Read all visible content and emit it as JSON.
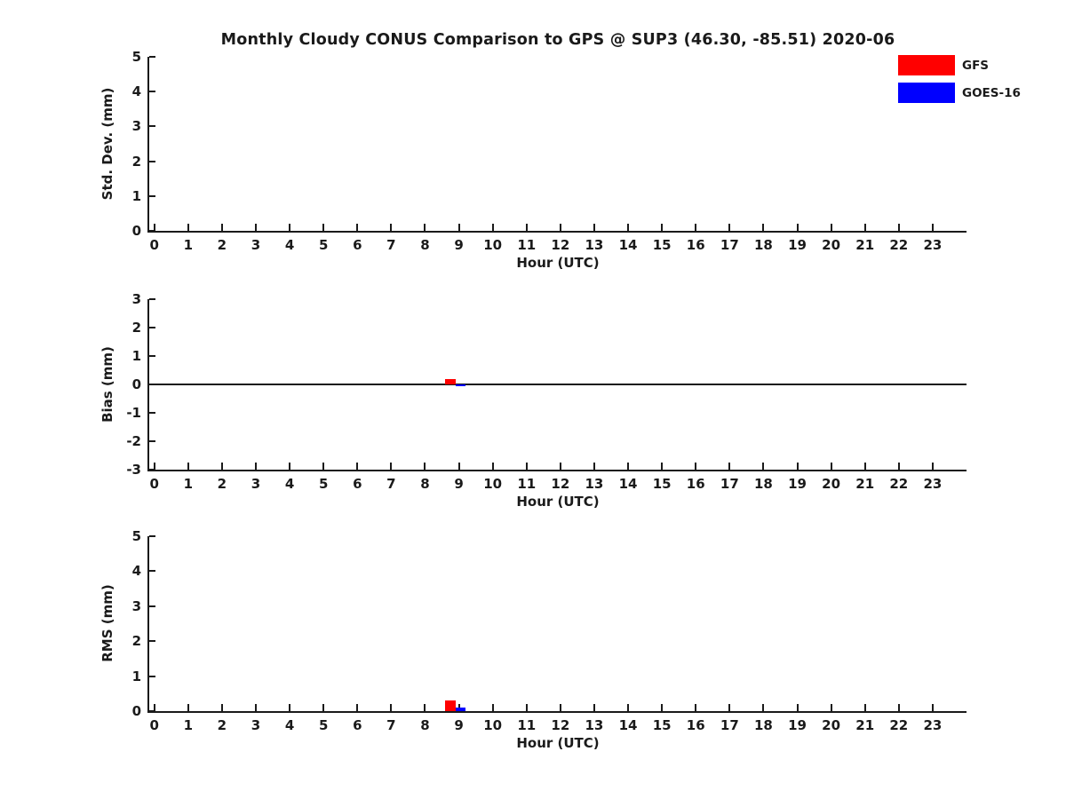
{
  "figure": {
    "title": "Monthly Cloudy CONUS Comparison to GPS @ SUP3 (46.30, -85.51) 2020-06",
    "background": "#ffffff",
    "text_color": "#1a1a1a"
  },
  "legend": {
    "position": "upper-right-of-figure",
    "items": [
      {
        "label": "GFS",
        "color": "#ff0000"
      },
      {
        "label": "GOES-16",
        "color": "#0000ff"
      }
    ]
  },
  "chart_data": [
    {
      "type": "bar",
      "ylabel": "Std. Dev. (mm)",
      "xlabel": "Hour (UTC)",
      "ylim": [
        0,
        5
      ],
      "yticks": [
        0,
        1,
        2,
        3,
        4,
        5
      ],
      "xlim": [
        -0.15,
        24
      ],
      "x": [
        0,
        1,
        2,
        3,
        4,
        5,
        6,
        7,
        8,
        9,
        10,
        11,
        12,
        13,
        14,
        15,
        16,
        17,
        18,
        19,
        20,
        21,
        22,
        23
      ],
      "grid": false,
      "zero_line": false,
      "bar_width": 0.3,
      "series": [
        {
          "name": "GFS",
          "color": "#ff0000",
          "offset": -0.25,
          "values": [
            0,
            0,
            0,
            0,
            0,
            0,
            0,
            0,
            0,
            0,
            0,
            0,
            0,
            0,
            0,
            0,
            0,
            0,
            0,
            0,
            0,
            0,
            0,
            0
          ]
        },
        {
          "name": "GOES-16",
          "color": "#0000ff",
          "offset": 0.05,
          "values": [
            0,
            0,
            0,
            0,
            0,
            0,
            0,
            0,
            0,
            0,
            0,
            0,
            0,
            0,
            0,
            0,
            0,
            0,
            0,
            0,
            0,
            0,
            0,
            0
          ]
        }
      ]
    },
    {
      "type": "bar",
      "ylabel": "Bias (mm)",
      "xlabel": "Hour (UTC)",
      "ylim": [
        -3,
        3
      ],
      "yticks": [
        -3,
        -2,
        -1,
        0,
        1,
        2,
        3
      ],
      "xlim": [
        -0.15,
        24
      ],
      "x": [
        0,
        1,
        2,
        3,
        4,
        5,
        6,
        7,
        8,
        9,
        10,
        11,
        12,
        13,
        14,
        15,
        16,
        17,
        18,
        19,
        20,
        21,
        22,
        23
      ],
      "grid": false,
      "zero_line": true,
      "bar_width": 0.3,
      "series": [
        {
          "name": "GFS",
          "color": "#ff0000",
          "offset": -0.25,
          "values": [
            0,
            0,
            0,
            0,
            0,
            0,
            0,
            0,
            0,
            0.2,
            0,
            0,
            0,
            0,
            0,
            0,
            0,
            0,
            0,
            0,
            0,
            0,
            0,
            0
          ]
        },
        {
          "name": "GOES-16",
          "color": "#0000ff",
          "offset": 0.05,
          "values": [
            0,
            0,
            0,
            0,
            0,
            0,
            0,
            0,
            0,
            -0.06,
            0,
            0,
            0,
            0,
            0,
            0,
            0,
            0,
            0,
            0,
            0,
            0,
            0,
            0
          ]
        }
      ]
    },
    {
      "type": "bar",
      "ylabel": "RMS (mm)",
      "xlabel": "Hour (UTC)",
      "ylim": [
        0,
        5
      ],
      "yticks": [
        0,
        1,
        2,
        3,
        4,
        5
      ],
      "xlim": [
        -0.15,
        24
      ],
      "x": [
        0,
        1,
        2,
        3,
        4,
        5,
        6,
        7,
        8,
        9,
        10,
        11,
        12,
        13,
        14,
        15,
        16,
        17,
        18,
        19,
        20,
        21,
        22,
        23
      ],
      "grid": false,
      "zero_line": false,
      "bar_width": 0.3,
      "series": [
        {
          "name": "GFS",
          "color": "#ff0000",
          "offset": -0.25,
          "values": [
            0,
            0,
            0,
            0,
            0,
            0,
            0,
            0,
            0,
            0.3,
            0,
            0,
            0,
            0,
            0,
            0,
            0,
            0,
            0,
            0,
            0,
            0,
            0,
            0
          ]
        },
        {
          "name": "GOES-16",
          "color": "#0000ff",
          "offset": 0.05,
          "values": [
            0,
            0,
            0,
            0,
            0,
            0,
            0,
            0,
            0,
            0.1,
            0,
            0,
            0,
            0,
            0,
            0,
            0,
            0,
            0,
            0,
            0,
            0,
            0,
            0
          ]
        }
      ]
    }
  ]
}
